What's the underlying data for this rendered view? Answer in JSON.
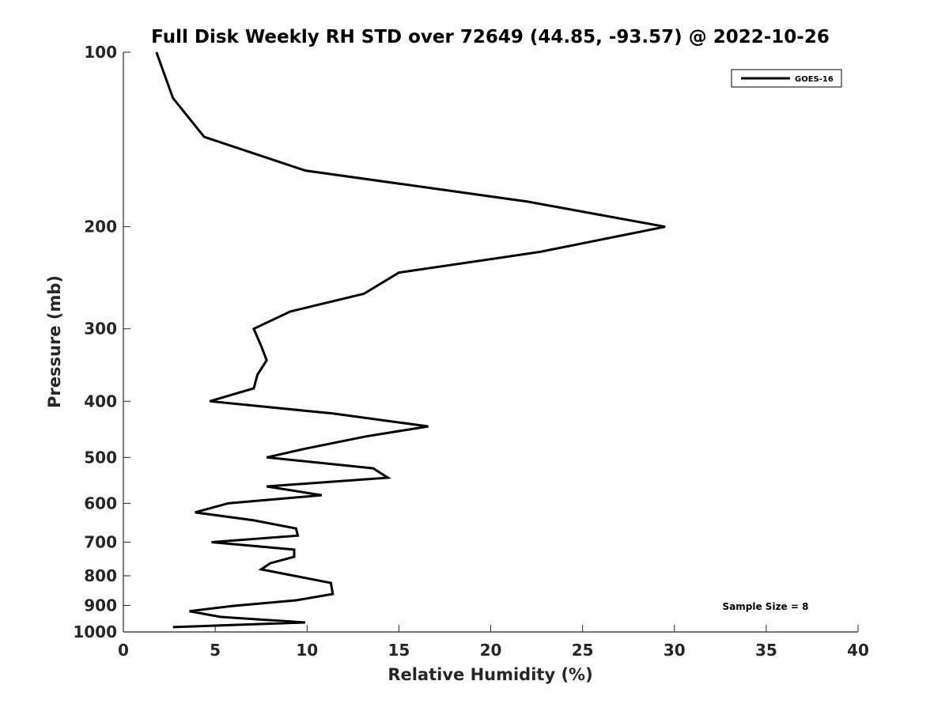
{
  "chart_data": {
    "type": "line",
    "title": "Full Disk Weekly RH STD over 72649 (44.85, -93.57) @ 2022-10-26",
    "xlabel": "Relative Humidity (%)",
    "ylabel": "Pressure (mb)",
    "xlim": [
      0,
      40
    ],
    "ylim": [
      100,
      1000
    ],
    "yscale": "log",
    "y_reversed": true,
    "xticks": [
      0,
      5,
      10,
      15,
      20,
      25,
      30,
      35,
      40
    ],
    "yticks": [
      100,
      200,
      300,
      400,
      500,
      600,
      700,
      800,
      900,
      1000
    ],
    "grid": false,
    "legend": {
      "entries": [
        "GOES-16"
      ],
      "placement": "top-right"
    },
    "annotation": "Sample Size = 8",
    "series": [
      {
        "name": "GOES-16",
        "color": "#000000",
        "x": [
          1.8,
          2.7,
          4.4,
          9.9,
          22.0,
          29.5,
          22.7,
          15.0,
          13.1,
          9.1,
          7.1,
          7.5,
          7.8,
          7.3,
          7.1,
          4.7,
          11.4,
          16.6,
          13.2,
          9.9,
          7.8,
          13.6,
          14.4,
          7.8,
          10.8,
          5.7,
          3.9,
          7.1,
          9.4,
          9.5,
          4.8,
          9.3,
          9.3,
          8.0,
          7.5,
          11.3,
          11.4,
          9.4,
          5.9,
          3.6,
          5.3,
          9.9,
          2.7
        ],
        "y": [
          100,
          120,
          140,
          160,
          181,
          200,
          221,
          240,
          261,
          280,
          300,
          321,
          340,
          360,
          380,
          400,
          420,
          442,
          460,
          483,
          500,
          522,
          542,
          561,
          581,
          600,
          622,
          642,
          663,
          682,
          700,
          721,
          742,
          761,
          780,
          823,
          860,
          882,
          902,
          921,
          942,
          963,
          981
        ]
      }
    ]
  }
}
